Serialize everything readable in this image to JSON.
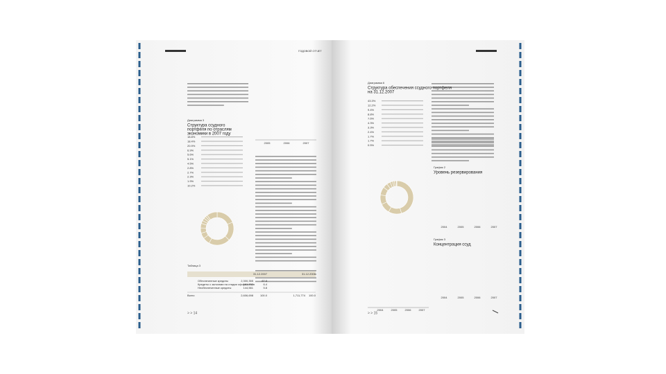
{
  "left_page": {
    "header": "ГОДОВОЙ ОТЧЕТ",
    "page_number": "> > 14",
    "diagram_label": "Диаграмма 3",
    "diagram_title": [
      "Структура ссудного",
      "портфеля по отраслям",
      "экономики в 2007 году"
    ],
    "shares": [
      18.8,
      18.4,
      20.9,
      6.9,
      5.6,
      5.1,
      4.5,
      2.8,
      2.7,
      2.3,
      1.9,
      10.2
    ],
    "share_labels": [
      "18.8%",
      "18.4%",
      "20.9%",
      "6.9%",
      "5.6%",
      "5.1%",
      "4.5%",
      "2.8%",
      "2.7%",
      "2.3%",
      "1.9%",
      "10.2%"
    ],
    "bar_years": [
      "2005",
      "2006",
      "2007"
    ],
    "table_label": "Таблица 3",
    "table": {
      "header": [
        "31.12.2007",
        "31.12.2006"
      ],
      "rows": [
        [
          "Обеспеченные кредиты",
          "2,300,355",
          "87.8"
        ],
        [
          "Кредиты с залогами на стадии оформления",
          "161,782",
          "6.4"
        ],
        [
          "Необеспеченные кредиты",
          "144,561",
          "5.8"
        ]
      ],
      "total": [
        "Всего",
        "2,606,698",
        "100.0",
        "1,711,774",
        "100.0"
      ]
    }
  },
  "right_page": {
    "page_number": "> > 15",
    "diagram_label": "Диаграмма 6",
    "diagram_title": [
      "Структура обеспечения ссудного портфеля",
      "на 31.12.2007"
    ],
    "shares": [
      43.3,
      12.2,
      9.4,
      8.8,
      7.6,
      4.3,
      3.3,
      2.4,
      1.7,
      1.7,
      0.5
    ],
    "share_labels": [
      "43.3%",
      "12.2%",
      "9.4%",
      "8.8%",
      "7.6%",
      "4.3%",
      "3.3%",
      "2.4%",
      "1.7%",
      "1.7%",
      "0.5%"
    ],
    "graph2_label": "График 2",
    "graph2_title": "Уровень резервирования",
    "graph3_label": "График 3",
    "graph3_title": "Концентрация ссуд",
    "years": [
      "2004",
      "2005",
      "2006",
      "2007"
    ]
  }
}
